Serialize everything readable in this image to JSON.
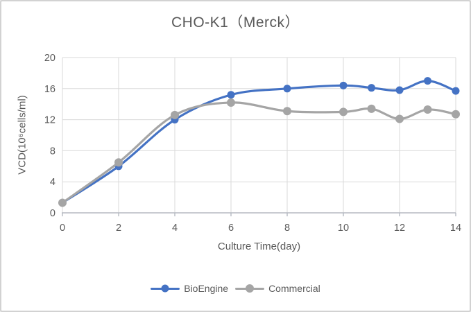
{
  "window": {
    "background": "#ffffff",
    "border_color": "#d2d2d2"
  },
  "chart_data": {
    "type": "line",
    "title": "CHO-K1（Merck）",
    "xlabel": "Culture Time(day)",
    "ylabel": "VCD(10⁶cells/ml)",
    "x": [
      0,
      2,
      4,
      6,
      8,
      10,
      11,
      12,
      13,
      14
    ],
    "series": [
      {
        "name": "BioEngine",
        "color": "#4472C4",
        "marker_radius": 5.5,
        "values": [
          1.3,
          6.0,
          12.0,
          15.2,
          16.0,
          16.4,
          16.1,
          15.8,
          17.0,
          15.7
        ]
      },
      {
        "name": "Commercial",
        "color": "#A5A5A5",
        "marker_radius": 6,
        "values": [
          1.3,
          6.5,
          12.6,
          14.2,
          13.1,
          13.0,
          13.4,
          12.1,
          13.3,
          12.7
        ]
      }
    ],
    "xlim": [
      0,
      14
    ],
    "ylim": [
      0,
      20
    ],
    "xticks": [
      0,
      2,
      4,
      6,
      8,
      10,
      12,
      14
    ],
    "yticks": [
      0,
      4,
      8,
      12,
      16,
      20
    ],
    "grid": true,
    "smoothed_lines": true,
    "legend_position": "bottom",
    "gridline_color": "#dadada",
    "axis_color": "#b5bac2",
    "text_color": "#595959"
  }
}
